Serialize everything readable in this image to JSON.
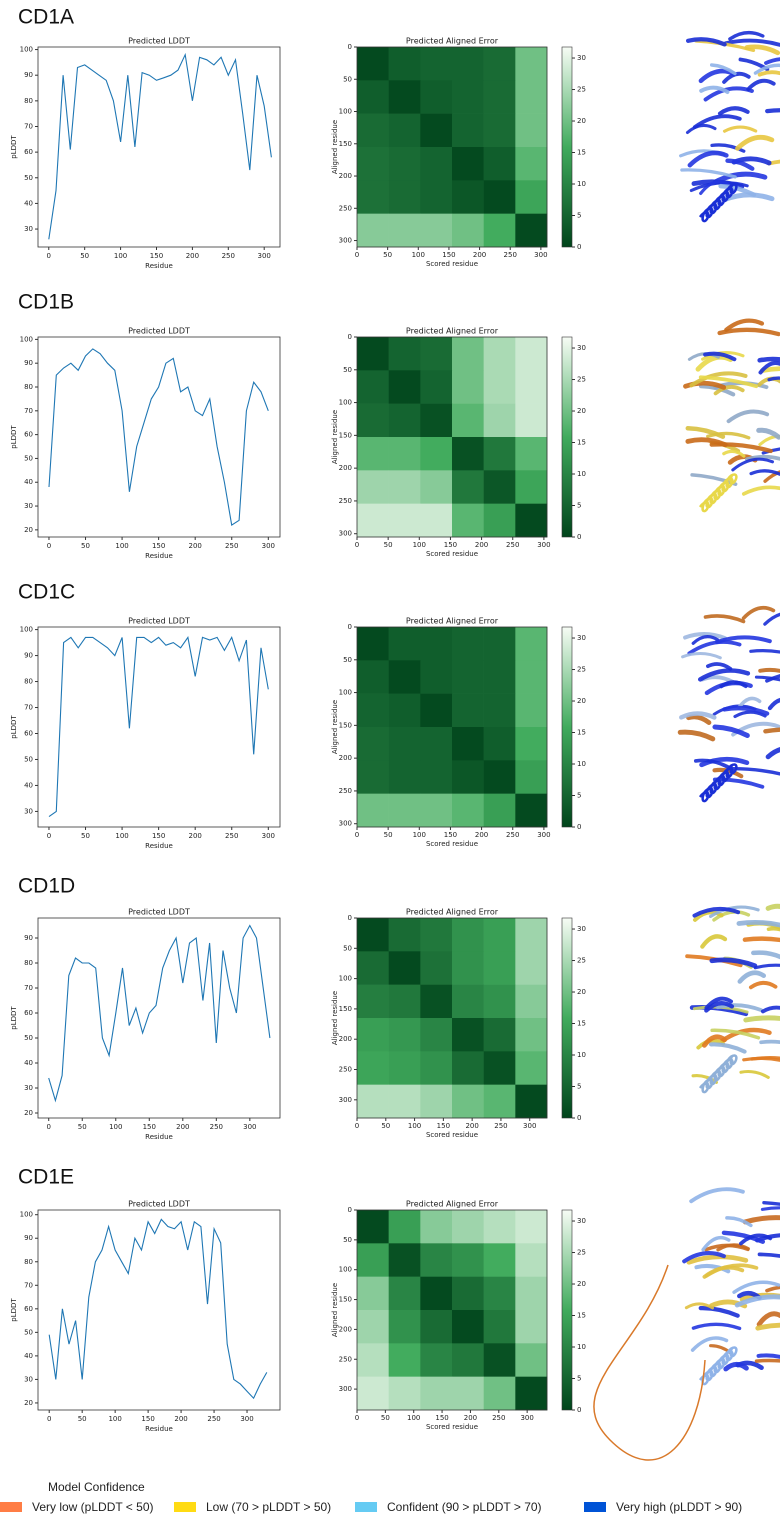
{
  "panels": [
    {
      "label": "CD1A"
    },
    {
      "label": "CD1B"
    },
    {
      "label": "CD1C"
    },
    {
      "label": "CD1D"
    },
    {
      "label": "CD1E"
    }
  ],
  "chart_data": [
    {
      "type": "line",
      "title": "Predicted LDDT",
      "xlabel": "Residue",
      "ylabel": "pLDDT",
      "color": "#1f77b4",
      "x": [
        0,
        10,
        20,
        30,
        40,
        50,
        60,
        70,
        80,
        90,
        100,
        110,
        120,
        130,
        140,
        150,
        160,
        170,
        180,
        190,
        200,
        210,
        220,
        230,
        240,
        250,
        260,
        270,
        280,
        290,
        300,
        310
      ],
      "values": [
        26,
        45,
        90,
        61,
        93,
        94,
        92,
        90,
        88,
        80,
        64,
        90,
        62,
        91,
        90,
        88,
        89,
        90,
        92,
        98,
        80,
        97,
        96,
        94,
        97,
        90,
        96,
        75,
        53,
        90,
        78,
        58
      ],
      "xlim": [
        -15,
        322
      ],
      "ylim": [
        23,
        101
      ],
      "xticks": [
        0,
        50,
        100,
        150,
        200,
        250,
        300
      ],
      "yticks": [
        30,
        40,
        50,
        60,
        70,
        80,
        90,
        100
      ]
    },
    {
      "type": "heatmap",
      "title": "Predicted Aligned Error",
      "xlabel": "Scored residue",
      "ylabel": "Aligned residue",
      "values": [
        [
          1,
          4,
          5,
          5,
          6,
          20
        ],
        [
          4,
          1,
          4,
          5,
          6,
          20
        ],
        [
          6,
          5,
          1,
          5,
          6,
          20
        ],
        [
          7,
          6,
          5,
          1,
          4,
          18
        ],
        [
          7,
          6,
          5,
          3,
          1,
          15
        ],
        [
          22,
          22,
          22,
          20,
          16,
          1
        ]
      ],
      "xlim": [
        0,
        310
      ],
      "ylim": [
        310,
        0
      ],
      "xticks": [
        0,
        50,
        100,
        150,
        200,
        250,
        300
      ],
      "yticks": [
        0,
        50,
        100,
        150,
        200,
        250,
        300
      ],
      "clim": [
        0,
        31.75
      ],
      "cticks": [
        0,
        5,
        10,
        15,
        20,
        25,
        30
      ],
      "colormap": [
        "#00441b",
        "#41ab5d",
        "#f7fcf5"
      ]
    },
    {
      "type": "line",
      "title": "Predicted LDDT",
      "xlabel": "Residue",
      "ylabel": "pLDDT",
      "color": "#1f77b4",
      "x": [
        0,
        10,
        20,
        30,
        40,
        50,
        60,
        70,
        80,
        90,
        100,
        110,
        120,
        130,
        140,
        150,
        160,
        170,
        180,
        190,
        200,
        210,
        220,
        230,
        240,
        250,
        260,
        270,
        280,
        290,
        300
      ],
      "values": [
        38,
        85,
        88,
        90,
        87,
        93,
        96,
        94,
        90,
        87,
        70,
        36,
        55,
        65,
        75,
        80,
        90,
        92,
        78,
        80,
        70,
        68,
        75,
        55,
        40,
        22,
        24,
        70,
        82,
        78,
        70
      ],
      "xlim": [
        -15,
        316
      ],
      "ylim": [
        17,
        101
      ],
      "xticks": [
        0,
        50,
        100,
        150,
        200,
        250,
        300
      ],
      "yticks": [
        20,
        30,
        40,
        50,
        60,
        70,
        80,
        90,
        100
      ]
    },
    {
      "type": "heatmap",
      "title": "Predicted Aligned Error",
      "xlabel": "Scored residue",
      "ylabel": "Aligned residue",
      "values": [
        [
          1,
          5,
          6,
          20,
          25,
          28
        ],
        [
          5,
          1,
          5,
          20,
          25,
          28
        ],
        [
          6,
          5,
          2,
          18,
          24,
          28
        ],
        [
          18,
          18,
          16,
          2,
          8,
          18
        ],
        [
          24,
          24,
          22,
          8,
          3,
          15
        ],
        [
          28,
          28,
          28,
          18,
          14,
          1
        ]
      ],
      "xlim": [
        0,
        305
      ],
      "ylim": [
        305,
        0
      ],
      "xticks": [
        0,
        50,
        100,
        150,
        200,
        250,
        300
      ],
      "yticks": [
        0,
        50,
        100,
        150,
        200,
        250,
        300
      ],
      "clim": [
        0,
        31.75
      ],
      "cticks": [
        0,
        5,
        10,
        15,
        20,
        25,
        30
      ],
      "colormap": [
        "#00441b",
        "#41ab5d",
        "#f7fcf5"
      ]
    },
    {
      "type": "line",
      "title": "Predicted LDDT",
      "xlabel": "Residue",
      "ylabel": "pLDDT",
      "color": "#1f77b4",
      "x": [
        0,
        10,
        20,
        30,
        40,
        50,
        60,
        70,
        80,
        90,
        100,
        110,
        120,
        130,
        140,
        150,
        160,
        170,
        180,
        190,
        200,
        210,
        220,
        230,
        240,
        250,
        260,
        270,
        280,
        290,
        300
      ],
      "values": [
        28,
        30,
        95,
        97,
        93,
        97,
        97,
        95,
        93,
        90,
        97,
        62,
        97,
        97,
        95,
        97,
        94,
        95,
        93,
        97,
        82,
        97,
        96,
        97,
        92,
        97,
        88,
        96,
        52,
        93,
        77
      ],
      "xlim": [
        -15,
        316
      ],
      "ylim": [
        24,
        101
      ],
      "xticks": [
        0,
        50,
        100,
        150,
        200,
        250,
        300
      ],
      "yticks": [
        30,
        40,
        50,
        60,
        70,
        80,
        90,
        100
      ]
    },
    {
      "type": "heatmap",
      "title": "Predicted Aligned Error",
      "xlabel": "Scored residue",
      "ylabel": "Aligned residue",
      "values": [
        [
          1,
          4,
          4,
          5,
          5,
          18
        ],
        [
          4,
          1,
          4,
          5,
          5,
          18
        ],
        [
          5,
          4,
          1,
          5,
          5,
          18
        ],
        [
          6,
          5,
          5,
          1,
          4,
          16
        ],
        [
          6,
          5,
          5,
          3,
          1,
          14
        ],
        [
          20,
          20,
          20,
          18,
          14,
          1
        ]
      ],
      "xlim": [
        0,
        305
      ],
      "ylim": [
        305,
        0
      ],
      "xticks": [
        0,
        50,
        100,
        150,
        200,
        250,
        300
      ],
      "yticks": [
        0,
        50,
        100,
        150,
        200,
        250,
        300
      ],
      "clim": [
        0,
        31.75
      ],
      "cticks": [
        0,
        5,
        10,
        15,
        20,
        25,
        30
      ],
      "colormap": [
        "#00441b",
        "#41ab5d",
        "#f7fcf5"
      ]
    },
    {
      "type": "line",
      "title": "Predicted LDDT",
      "xlabel": "Residue",
      "ylabel": "pLDDT",
      "color": "#1f77b4",
      "x": [
        0,
        10,
        20,
        30,
        40,
        50,
        60,
        70,
        80,
        90,
        100,
        110,
        120,
        130,
        140,
        150,
        160,
        170,
        180,
        190,
        200,
        210,
        220,
        230,
        240,
        250,
        260,
        270,
        280,
        290,
        300,
        310,
        320,
        330
      ],
      "values": [
        34,
        25,
        35,
        75,
        82,
        80,
        80,
        78,
        50,
        43,
        60,
        78,
        55,
        62,
        52,
        60,
        63,
        78,
        85,
        90,
        72,
        88,
        90,
        65,
        88,
        48,
        85,
        70,
        60,
        90,
        95,
        90,
        70,
        50
      ],
      "xlim": [
        -16,
        345
      ],
      "ylim": [
        18,
        98
      ],
      "xticks": [
        0,
        50,
        100,
        150,
        200,
        250,
        300
      ],
      "yticks": [
        20,
        30,
        40,
        50,
        60,
        70,
        80,
        90
      ]
    },
    {
      "type": "heatmap",
      "title": "Predicted Aligned Error",
      "xlabel": "Scored residue",
      "ylabel": "Aligned residue",
      "values": [
        [
          1,
          6,
          8,
          12,
          14,
          24
        ],
        [
          6,
          1,
          7,
          12,
          14,
          24
        ],
        [
          9,
          8,
          2,
          10,
          12,
          22
        ],
        [
          14,
          13,
          10,
          2,
          6,
          20
        ],
        [
          15,
          14,
          12,
          6,
          2,
          18
        ],
        [
          26,
          26,
          24,
          20,
          18,
          1
        ]
      ],
      "xlim": [
        0,
        330
      ],
      "ylim": [
        330,
        0
      ],
      "xticks": [
        0,
        50,
        100,
        150,
        200,
        250,
        300
      ],
      "yticks": [
        0,
        50,
        100,
        150,
        200,
        250,
        300
      ],
      "clim": [
        0,
        31.75
      ],
      "cticks": [
        0,
        5,
        10,
        15,
        20,
        25,
        30
      ],
      "colormap": [
        "#00441b",
        "#41ab5d",
        "#f7fcf5"
      ]
    },
    {
      "type": "line",
      "title": "Predicted LDDT",
      "xlabel": "Residue",
      "ylabel": "pLDDT",
      "color": "#1f77b4",
      "x": [
        0,
        10,
        20,
        30,
        40,
        50,
        60,
        70,
        80,
        90,
        100,
        110,
        120,
        130,
        140,
        150,
        160,
        170,
        180,
        190,
        200,
        210,
        220,
        230,
        240,
        250,
        260,
        270,
        280,
        290,
        300,
        310,
        320,
        330
      ],
      "values": [
        49,
        30,
        60,
        45,
        55,
        30,
        65,
        80,
        85,
        95,
        85,
        80,
        75,
        90,
        85,
        97,
        92,
        98,
        95,
        94,
        97,
        85,
        97,
        95,
        62,
        94,
        88,
        45,
        30,
        28,
        25,
        22,
        28,
        33
      ],
      "xlim": [
        -17,
        350
      ],
      "ylim": [
        17,
        102
      ],
      "xticks": [
        0,
        50,
        100,
        150,
        200,
        250,
        300
      ],
      "yticks": [
        20,
        30,
        40,
        50,
        60,
        70,
        80,
        90,
        100
      ]
    },
    {
      "type": "heatmap",
      "title": "Predicted Aligned Error",
      "xlabel": "Scored residue",
      "ylabel": "Aligned residue",
      "values": [
        [
          1,
          14,
          22,
          24,
          26,
          28
        ],
        [
          14,
          2,
          10,
          12,
          16,
          26
        ],
        [
          22,
          10,
          1,
          6,
          10,
          24
        ],
        [
          24,
          12,
          6,
          1,
          8,
          24
        ],
        [
          26,
          16,
          10,
          8,
          2,
          20
        ],
        [
          28,
          26,
          24,
          24,
          20,
          1
        ]
      ],
      "xlim": [
        0,
        335
      ],
      "ylim": [
        335,
        0
      ],
      "xticks": [
        0,
        50,
        100,
        150,
        200,
        250,
        300
      ],
      "yticks": [
        0,
        50,
        100,
        150,
        200,
        250,
        300
      ],
      "clim": [
        0,
        31.75
      ],
      "cticks": [
        0,
        5,
        10,
        15,
        20,
        25,
        30
      ],
      "colormap": [
        "#00441b",
        "#41ab5d",
        "#f7fcf5"
      ]
    }
  ],
  "legend": {
    "title": "Model Confidence",
    "items": [
      {
        "label": "Very low (pLDDT < 50)",
        "color": "#ff7d45"
      },
      {
        "label": "Low (70 > pLDDT > 50)",
        "color": "#ffdb13"
      },
      {
        "label": "Confident (90 > pLDDT > 70)",
        "color": "#65cbf3"
      },
      {
        "label": "Very high (pLDDT > 90)",
        "color": "#0053d6"
      }
    ]
  }
}
